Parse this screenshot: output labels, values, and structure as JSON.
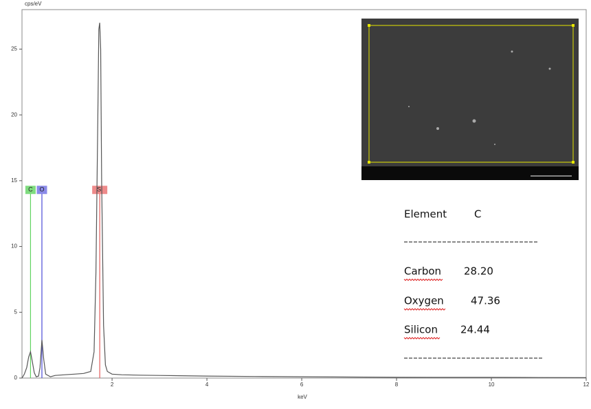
{
  "chart_data": {
    "type": "line",
    "y_label": "cps/eV",
    "x_label": "keV",
    "xlim": [
      0.1,
      12
    ],
    "ylim": [
      0,
      28
    ],
    "xticks": [
      2,
      4,
      6,
      8,
      10,
      12
    ],
    "yticks": [
      0,
      5,
      10,
      15,
      20,
      25
    ],
    "series": [
      {
        "color": "#555555",
        "x": [
          0.1,
          0.15,
          0.2,
          0.24,
          0.28,
          0.32,
          0.36,
          0.4,
          0.45,
          0.48,
          0.52,
          0.56,
          0.6,
          0.7,
          0.8,
          1.0,
          1.2,
          1.4,
          1.55,
          1.62,
          1.66,
          1.7,
          1.72,
          1.74,
          1.76,
          1.78,
          1.82,
          1.86,
          1.9,
          2.0,
          2.2,
          2.6,
          3,
          4,
          5,
          6,
          7,
          8,
          9,
          10,
          11,
          12
        ],
        "values": [
          0,
          0.3,
          0.8,
          1.6,
          2.0,
          1.2,
          0.4,
          0.1,
          0.15,
          0.8,
          2.9,
          1.4,
          0.3,
          0.1,
          0.2,
          0.25,
          0.3,
          0.35,
          0.5,
          2,
          8,
          20,
          26.5,
          27,
          25,
          15,
          4,
          1,
          0.5,
          0.3,
          0.25,
          0.22,
          0.2,
          0.15,
          0.12,
          0.1,
          0.08,
          0.06,
          0.05,
          0.05,
          0.04,
          0.03
        ]
      }
    ],
    "element_markers": [
      {
        "label": "C",
        "x": 0.28,
        "height": 14.3,
        "color": "#5fd35f",
        "label_color": "#7fdc7f"
      },
      {
        "label": "O",
        "x": 0.52,
        "height": 14.3,
        "color": "#4a4ad8",
        "label_color": "#8a8ae8"
      },
      {
        "label": "Si",
        "x": 1.74,
        "height": 14.3,
        "color": "#e35a5a",
        "label_color": "#ee8a8a"
      }
    ]
  },
  "table": {
    "header": [
      "Element",
      "C"
    ],
    "rows": [
      [
        "Carbon",
        "28.20"
      ],
      [
        "Oxygen",
        "47.36"
      ],
      [
        "Silicon",
        "24.44"
      ]
    ]
  }
}
